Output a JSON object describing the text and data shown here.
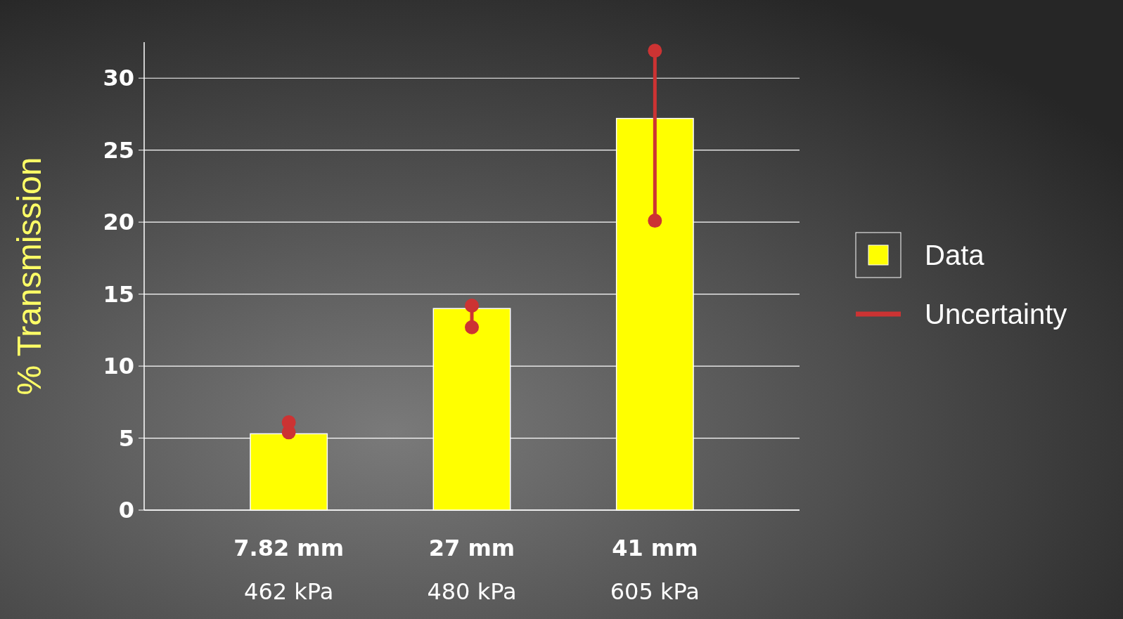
{
  "chart_data": {
    "type": "bar",
    "ylabel": "% Transmission",
    "categories": [
      "7.82 mm\n462 kPa",
      "27 mm\n480 kPa",
      "41 mm\n605 kPa"
    ],
    "series": [
      {
        "name": "Data",
        "color": "#ffff00",
        "values": [
          5.3,
          14.0,
          27.2
        ]
      },
      {
        "name": "Uncertainty",
        "type": "scatter",
        "color": "#cc3333",
        "x": [
          "7.82 mm\n462 kPa",
          "7.82 mm\n462 kPa",
          "27 mm\n480 kPa",
          "27 mm\n480 kPa",
          "41 mm\n605 kPa",
          "41 mm\n605 kPa"
        ],
        "values": [
          5.4,
          6.1,
          12.7,
          14.2,
          20.1,
          31.9
        ]
      }
    ],
    "ylim": [
      0,
      32.5
    ],
    "yticks": [
      0,
      5,
      10,
      15,
      20,
      25,
      30
    ],
    "grid": "y",
    "legend": "right"
  }
}
